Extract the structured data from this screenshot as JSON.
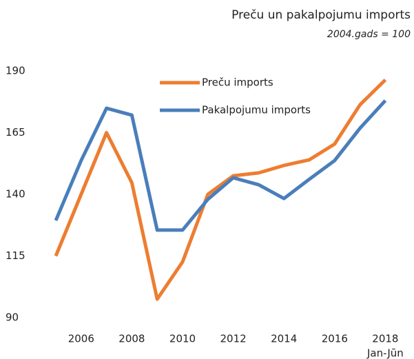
{
  "chart_data": {
    "type": "line",
    "title": "Preču un pakalpojumu imports",
    "subtitle": "2004.gads = 100",
    "categories": [
      null,
      "2006",
      null,
      "2008",
      null,
      "2010",
      null,
      "2012",
      null,
      "2014",
      null,
      "2016",
      null,
      "2018"
    ],
    "annotations": [
      "Jan-Jūn"
    ],
    "series": [
      {
        "name": "Preču imports",
        "color": "#ed7d31",
        "values": [
          115,
          140,
          165,
          144.7,
          97.5,
          112.6,
          140,
          147.5,
          148.7,
          151.7,
          154,
          160.4,
          176.3,
          186.4
        ]
      },
      {
        "name": "Pakalpojumu imports",
        "color": "#4a7ebb",
        "values": [
          129.4,
          153.7,
          174.9,
          172.1,
          125.5,
          125.5,
          138,
          146.7,
          143.9,
          138.3,
          146.1,
          153.7,
          166.8,
          178
        ]
      }
    ],
    "ylim": [
      90,
      190
    ],
    "yticks": [
      90,
      115,
      140,
      165,
      190
    ],
    "grid": false,
    "legend": "top"
  }
}
